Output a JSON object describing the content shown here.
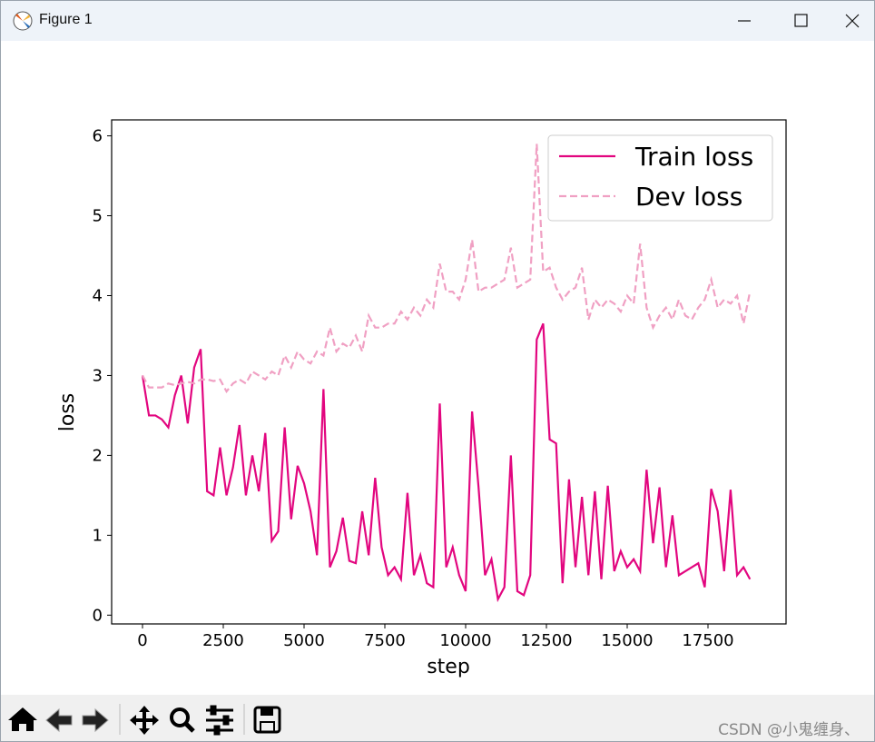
{
  "window": {
    "title": "Figure 1",
    "watermark": "CSDN @小鬼缠身、"
  },
  "chart_data": {
    "type": "line",
    "xlabel": "step",
    "ylabel": "loss",
    "x": [
      0,
      200,
      400,
      600,
      800,
      1000,
      1200,
      1400,
      1600,
      1800,
      2000,
      2200,
      2400,
      2600,
      2800,
      3000,
      3200,
      3400,
      3600,
      3800,
      4000,
      4200,
      4400,
      4600,
      4800,
      5000,
      5200,
      5400,
      5600,
      5800,
      6000,
      6200,
      6400,
      6600,
      6800,
      7000,
      7200,
      7400,
      7600,
      7800,
      8000,
      8200,
      8400,
      8600,
      8800,
      9000,
      9200,
      9400,
      9600,
      9800,
      10000,
      10200,
      10400,
      10600,
      10800,
      11000,
      11200,
      11400,
      11600,
      11800,
      12000,
      12200,
      12400,
      12600,
      12800,
      13000,
      13200,
      13400,
      13600,
      13800,
      14000,
      14200,
      14400,
      14600,
      14800,
      15000,
      15200,
      15400,
      15600,
      15800,
      16000,
      16200,
      16400,
      16600,
      16800,
      17000,
      17200,
      17400,
      17600,
      17800,
      18000,
      18200,
      18400,
      18600,
      18800
    ],
    "series": [
      {
        "name": "Train loss",
        "color": "#e2067f",
        "linestyle": "solid",
        "values": [
          3.0,
          2.5,
          2.5,
          2.45,
          2.35,
          2.75,
          3.0,
          2.4,
          3.1,
          3.33,
          1.55,
          1.5,
          2.1,
          1.5,
          1.85,
          2.38,
          1.5,
          2.0,
          1.55,
          2.28,
          0.93,
          1.05,
          2.35,
          1.2,
          1.87,
          1.65,
          1.3,
          0.75,
          2.83,
          0.6,
          0.8,
          1.22,
          0.68,
          0.65,
          1.3,
          0.75,
          1.72,
          0.85,
          0.5,
          0.6,
          0.45,
          1.53,
          0.5,
          0.75,
          0.4,
          0.35,
          2.65,
          0.6,
          0.85,
          0.5,
          0.3,
          2.55,
          1.6,
          0.5,
          0.7,
          0.2,
          0.35,
          2.0,
          0.3,
          0.25,
          0.5,
          3.45,
          3.65,
          2.2,
          2.15,
          0.4,
          1.7,
          0.6,
          1.48,
          0.5,
          1.55,
          0.45,
          1.62,
          0.55,
          0.8,
          0.6,
          0.7,
          0.55,
          1.82,
          0.9,
          1.6,
          0.6,
          1.25,
          0.5,
          0.55,
          0.6,
          0.65,
          0.35,
          1.58,
          1.3,
          0.55,
          1.57,
          0.5,
          0.6,
          0.45
        ]
      },
      {
        "name": "Dev loss",
        "color": "#f0a0c3",
        "linestyle": "dashed",
        "values": [
          3.0,
          2.85,
          2.85,
          2.85,
          2.9,
          2.88,
          2.9,
          2.92,
          2.9,
          2.95,
          2.95,
          2.93,
          2.95,
          2.8,
          2.9,
          2.95,
          2.9,
          3.05,
          3.0,
          2.95,
          3.05,
          3.0,
          3.25,
          3.1,
          3.3,
          3.2,
          3.15,
          3.3,
          3.25,
          3.6,
          3.3,
          3.4,
          3.35,
          3.5,
          3.3,
          3.75,
          3.6,
          3.6,
          3.65,
          3.65,
          3.8,
          3.7,
          3.85,
          3.75,
          3.95,
          3.85,
          4.4,
          4.05,
          4.05,
          3.95,
          4.2,
          4.7,
          4.05,
          4.1,
          4.1,
          4.15,
          4.2,
          4.6,
          4.1,
          4.15,
          4.2,
          5.9,
          4.3,
          4.35,
          4.1,
          3.95,
          4.05,
          4.1,
          4.35,
          3.7,
          3.95,
          3.85,
          3.95,
          3.9,
          3.8,
          4.0,
          3.9,
          4.65,
          3.85,
          3.6,
          3.75,
          3.85,
          3.7,
          3.95,
          3.75,
          3.7,
          3.85,
          3.95,
          4.2,
          3.85,
          3.95,
          3.9,
          4.0,
          3.65,
          4.05
        ]
      }
    ],
    "xlim": [
      -955,
      19916
    ],
    "ylim": [
      -0.11,
      6.2
    ],
    "xticks": [
      0,
      2500,
      5000,
      7500,
      10000,
      12500,
      15000,
      17500
    ],
    "yticks": [
      0,
      1,
      2,
      3,
      4,
      5,
      6
    ],
    "legend": "upper right"
  }
}
